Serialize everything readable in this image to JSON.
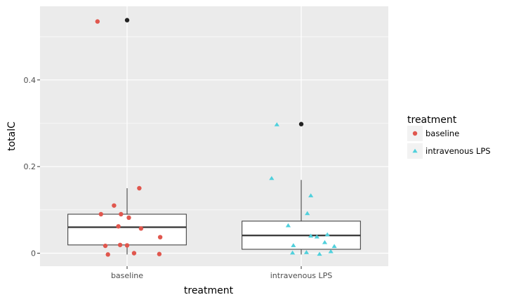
{
  "chart_data": {
    "type": "boxplot",
    "xlabel": "treatment",
    "ylabel": "totalC",
    "ylim": [
      -0.03,
      0.57
    ],
    "yticks": [
      0,
      0.2,
      0.4
    ],
    "ytick_labels": [
      "0",
      "0.2",
      "0.4"
    ],
    "categories": [
      "baseline",
      "intravenous LPS"
    ],
    "grid": true,
    "legend": {
      "title": "treatment",
      "placement": "right",
      "entries": [
        {
          "label": "baseline",
          "shape": "circle",
          "color": "#e0574e"
        },
        {
          "label": "intravenous LPS",
          "shape": "triangle",
          "color": "#4fd0dc"
        }
      ]
    },
    "boxes": [
      {
        "category": "baseline",
        "q1": 0.019,
        "median": 0.06,
        "q3": 0.09,
        "whisker_low": -0.003,
        "whisker_high": 0.15,
        "outliers": [
          0.538
        ]
      },
      {
        "category": "intravenous LPS",
        "q1": 0.009,
        "median": 0.041,
        "q3": 0.074,
        "whisker_low": -0.003,
        "whisker_high": 0.169,
        "outliers": [
          0.298
        ]
      }
    ],
    "series": [
      {
        "name": "baseline",
        "shape": "circle",
        "color": "#e0574e",
        "points": [
          {
            "x": "baseline",
            "jitter": -0.34,
            "y": 0.535
          },
          {
            "x": "baseline",
            "jitter": 0.14,
            "y": 0.15
          },
          {
            "x": "baseline",
            "jitter": -0.15,
            "y": 0.11
          },
          {
            "x": "baseline",
            "jitter": -0.3,
            "y": 0.09
          },
          {
            "x": "baseline",
            "jitter": -0.07,
            "y": 0.09
          },
          {
            "x": "baseline",
            "jitter": 0.02,
            "y": 0.082
          },
          {
            "x": "baseline",
            "jitter": -0.1,
            "y": 0.062
          },
          {
            "x": "baseline",
            "jitter": 0.16,
            "y": 0.057
          },
          {
            "x": "baseline",
            "jitter": 0.38,
            "y": 0.037
          },
          {
            "x": "baseline",
            "jitter": -0.25,
            "y": 0.017
          },
          {
            "x": "baseline",
            "jitter": -0.08,
            "y": 0.019
          },
          {
            "x": "baseline",
            "jitter": 0.0,
            "y": 0.018
          },
          {
            "x": "baseline",
            "jitter": -0.22,
            "y": -0.003
          },
          {
            "x": "baseline",
            "jitter": 0.08,
            "y": 0.0
          },
          {
            "x": "baseline",
            "jitter": 0.37,
            "y": -0.002
          }
        ]
      },
      {
        "name": "intravenous LPS",
        "shape": "triangle",
        "color": "#4fd0dc",
        "points": [
          {
            "x": "intravenous LPS",
            "jitter": -0.28,
            "y": 0.297
          },
          {
            "x": "intravenous LPS",
            "jitter": -0.34,
            "y": 0.173
          },
          {
            "x": "intravenous LPS",
            "jitter": 0.11,
            "y": 0.133
          },
          {
            "x": "intravenous LPS",
            "jitter": 0.07,
            "y": 0.092
          },
          {
            "x": "intravenous LPS",
            "jitter": -0.15,
            "y": 0.064
          },
          {
            "x": "intravenous LPS",
            "jitter": 0.3,
            "y": 0.043
          },
          {
            "x": "intravenous LPS",
            "jitter": 0.11,
            "y": 0.04
          },
          {
            "x": "intravenous LPS",
            "jitter": 0.18,
            "y": 0.038
          },
          {
            "x": "intravenous LPS",
            "jitter": 0.27,
            "y": 0.025
          },
          {
            "x": "intravenous LPS",
            "jitter": -0.09,
            "y": 0.018
          },
          {
            "x": "intravenous LPS",
            "jitter": 0.38,
            "y": 0.016
          },
          {
            "x": "intravenous LPS",
            "jitter": -0.1,
            "y": 0.001
          },
          {
            "x": "intravenous LPS",
            "jitter": 0.06,
            "y": 0.002
          },
          {
            "x": "intravenous LPS",
            "jitter": 0.34,
            "y": 0.004
          },
          {
            "x": "intravenous LPS",
            "jitter": 0.21,
            "y": -0.002
          }
        ]
      }
    ]
  }
}
